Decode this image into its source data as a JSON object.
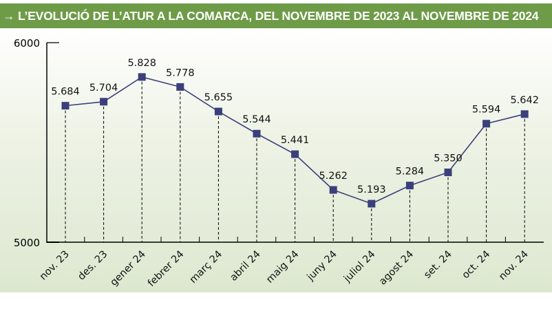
{
  "chart_data": {
    "type": "line",
    "title": "→ L’EVOLUCIÓ DE L’ATUR A LA COMARCA, DEL NOVEMBRE DE 2023 AL NOVEMBRE DE 2024",
    "categories": [
      "nov. 23",
      "des. 23",
      "gener 24",
      "febrer 24",
      "març 24",
      "abril 24",
      "maig 24",
      "juny 24",
      "juliol 24",
      "agost 24",
      "set. 24",
      "oct. 24",
      "nov. 24"
    ],
    "values": [
      5684,
      5704,
      5828,
      5778,
      5655,
      5544,
      5441,
      5262,
      5193,
      5284,
      5350,
      5594,
      5642
    ],
    "data_labels": [
      "5.684",
      "5.704",
      "5.828",
      "5.778",
      "5.655",
      "5.544",
      "5.441",
      "5.262",
      "5.193",
      "5.284",
      "5.350",
      "5.594",
      "5.642"
    ],
    "ylim": [
      5000,
      6000
    ],
    "yticks": [
      "5000",
      "6000"
    ],
    "xlabel": "",
    "ylabel": "",
    "grid": false,
    "colors": {
      "line": "#3b3f7a",
      "title_bg": "#6e9b47"
    }
  }
}
